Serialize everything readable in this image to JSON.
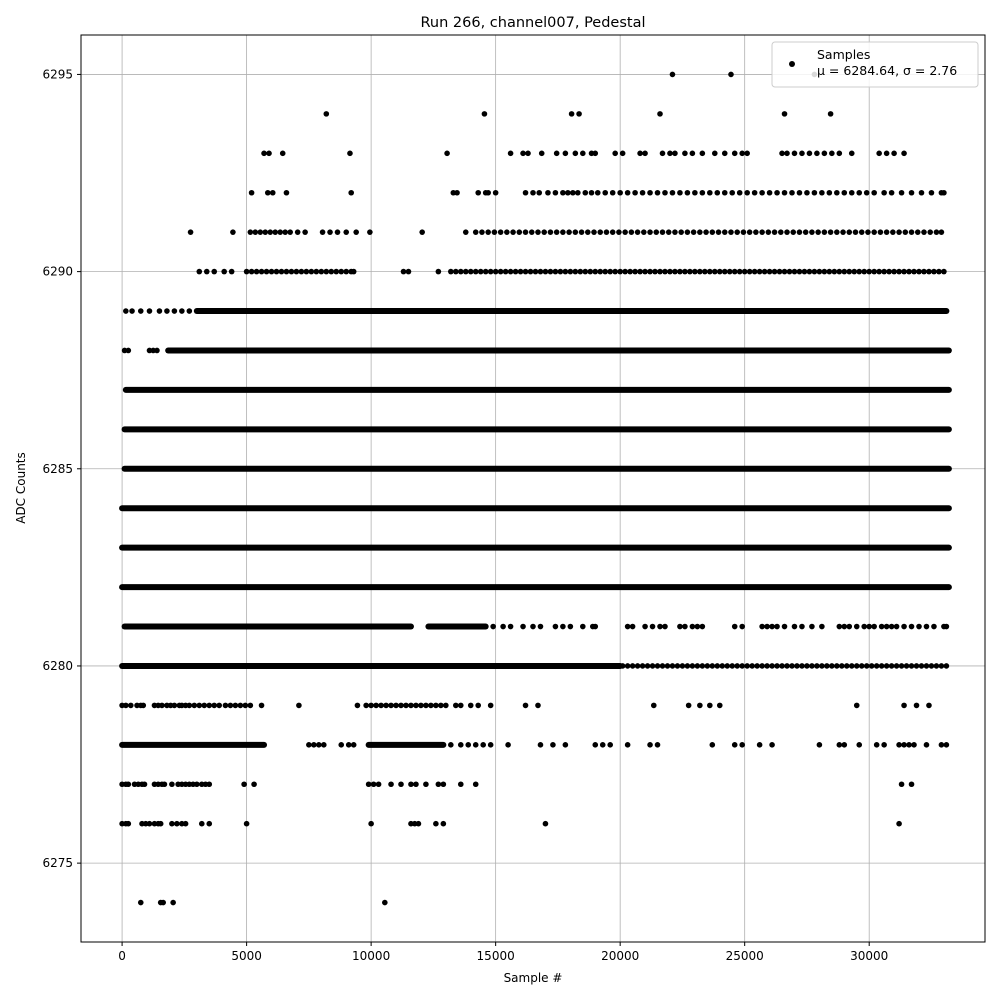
{
  "chart_data": {
    "type": "scatter",
    "title": "Run 266, channel007, Pedestal",
    "xlabel": "Sample #",
    "ylabel": "ADC Counts",
    "xlim": [
      -1650,
      34650
    ],
    "ylim": [
      6273,
      6296
    ],
    "x_ticks": [
      0,
      5000,
      10000,
      15000,
      20000,
      25000,
      30000
    ],
    "y_ticks": [
      6275,
      6280,
      6285,
      6290,
      6295
    ],
    "x_tick_labels": [
      "0",
      "5000",
      "10000",
      "15000",
      "20000",
      "25000",
      "30000"
    ],
    "y_tick_labels": [
      "6275",
      "6280",
      "6285",
      "6290",
      "6295"
    ],
    "grid": true,
    "legend_position": "top-right",
    "series": [
      {
        "name": "Samples",
        "stats_label": "μ = 6284.64, σ = 2.76",
        "color": "#000000",
        "marker": "dot",
        "n_samples": 33200,
        "levels": [
          {
            "y": 6295,
            "x": [
              22100,
              24450,
              27800
            ]
          },
          {
            "y": 6294,
            "x": [
              8200,
              14550,
              18050,
              18350,
              21600,
              26600,
              28450
            ]
          },
          {
            "y": 6293,
            "x": [
              5700,
              5900,
              6450,
              9150,
              13050,
              15600,
              16100,
              16300,
              16850,
              17450,
              17800,
              18200,
              18500,
              18850,
              19000,
              19800,
              20100,
              20800,
              21000,
              21700,
              22000,
              22200,
              22600,
              22900,
              23300,
              23800,
              24200,
              24600,
              24900,
              25100,
              26500,
              26700,
              27000,
              27300,
              27600,
              27900,
              28200,
              28500,
              28800,
              29300,
              30400,
              30700,
              31000,
              31400
            ]
          },
          {
            "y": 6292,
            "x": [
              5200,
              5850,
              6050,
              6600,
              9200,
              13300,
              13450,
              14300,
              14600,
              14700,
              15000,
              16200,
              16500,
              16750,
              17100,
              17400,
              17700,
              17900,
              18100,
              18300,
              18600,
              18850,
              19100,
              19400,
              19700,
              20000,
              20300,
              20600,
              20900,
              21200,
              21500,
              21800,
              22100,
              22400,
              22700,
              23000,
              23300,
              23600,
              23900,
              24200,
              24500,
              24800,
              25100,
              25400,
              25700,
              26000,
              26300,
              26600,
              26900,
              27200,
              27500,
              27800,
              28100,
              28400,
              28700,
              29000,
              29300,
              29600,
              29900,
              30200,
              30600,
              30900,
              31300,
              31700,
              32100,
              32500,
              32900,
              33000
            ]
          },
          {
            "y": 6291,
            "x": [
              2750,
              4450,
              5150,
              5350,
              5550,
              5750,
              5950,
              6150,
              6350,
              6550,
              6750,
              7050,
              7350,
              8050,
              8350,
              8650,
              9000,
              9400,
              9950,
              12050,
              13800,
              14200,
              14450,
              14700,
              14950,
              15200,
              15450,
              15700,
              15950,
              16200,
              16450,
              16700,
              16950,
              17200,
              17450,
              17700,
              17950,
              18200,
              18450,
              18700,
              18950,
              19200,
              19450,
              19700,
              19950,
              20200,
              20450,
              20700,
              20950,
              21200,
              21450,
              21700,
              21950,
              22200,
              22450,
              22700,
              22950,
              23200,
              23450,
              23700,
              23950,
              24200,
              24450,
              24700,
              24950,
              25200,
              25450,
              25700,
              25950,
              26200,
              26450,
              26700,
              26950,
              27200,
              27450,
              27700,
              27950,
              28200,
              28450,
              28700,
              28950,
              29200,
              29450,
              29700,
              29950,
              30200,
              30450,
              30700,
              30950,
              31200,
              31450,
              31700,
              31950,
              32200,
              32450,
              32700,
              32900
            ]
          },
          {
            "y": 6290,
            "x": [
              3100,
              3400,
              3700,
              4100,
              4400,
              5000,
              5200,
              5400,
              5600,
              5800,
              6000,
              6200,
              6400,
              6600,
              6800,
              7000,
              7200,
              7400,
              7600,
              7800,
              8000,
              8200,
              8400,
              8600,
              8800,
              9000,
              9200,
              9300,
              11300,
              11500,
              12700,
              13200,
              13400,
              13600,
              13800,
              14000,
              14200,
              14400,
              14600,
              14800,
              15000,
              15200,
              15400,
              15600,
              15800,
              16000,
              16200,
              16400,
              16600,
              16800,
              17000,
              17200,
              17400,
              17600,
              17800,
              18000,
              18200,
              18400,
              18600,
              18800,
              19000,
              19200,
              19400,
              19600,
              19800,
              20000,
              20200,
              20400,
              20600,
              20800,
              21000,
              21200,
              21400,
              21600,
              21800,
              22000,
              22200,
              22400,
              22600,
              22800,
              23000,
              23200,
              23400,
              23600,
              23800,
              24000,
              24200,
              24400,
              24600,
              24800,
              25000,
              25200,
              25400,
              25600,
              25800,
              26000,
              26200,
              26400,
              26600,
              26800,
              27000,
              27200,
              27400,
              27600,
              27800,
              28000,
              28200,
              28400,
              28600,
              28800,
              29000,
              29200,
              29400,
              29600,
              29800,
              30000,
              30200,
              30400,
              30600,
              30800,
              31000,
              31200,
              31400,
              31600,
              31800,
              32000,
              32200,
              32400,
              32600,
              32800,
              33000
            ]
          },
          {
            "y": 6289,
            "x_ranges": [
              [
                3000,
                33100
              ]
            ],
            "x": [
              150,
              400,
              750,
              1100,
              1500,
              1800,
              2100,
              2400,
              2700,
              9800,
              10300,
              10600,
              10900,
              11300,
              11600,
              11900,
              12300,
              12700,
              13100,
              13400,
              13700
            ]
          },
          {
            "y": 6288,
            "x_ranges": [
              [
                1850,
                33200
              ]
            ],
            "x": [
              100,
              250,
              1100,
              1250,
              1400
            ]
          },
          {
            "y": 6287,
            "x_ranges": [
              [
                150,
                33200
              ]
            ]
          },
          {
            "y": 6286,
            "x_ranges": [
              [
                100,
                33200
              ]
            ]
          },
          {
            "y": 6285,
            "x_ranges": [
              [
                100,
                33200
              ]
            ]
          },
          {
            "y": 6284,
            "x_ranges": [
              [
                0,
                33200
              ]
            ]
          },
          {
            "y": 6283,
            "x_ranges": [
              [
                0,
                33200
              ]
            ]
          },
          {
            "y": 6282,
            "x_ranges": [
              [
                0,
                33200
              ]
            ]
          },
          {
            "y": 6281,
            "x_ranges": [
              [
                100,
                11600
              ],
              [
                12300,
                14600
              ]
            ],
            "x": [
              14900,
              15300,
              15600,
              16100,
              16500,
              16800,
              17400,
              17700,
              18000,
              18500,
              18900,
              19000,
              20300,
              20500,
              21000,
              21300,
              21600,
              21800,
              22400,
              22600,
              22900,
              23100,
              23300,
              24600,
              24900,
              25700,
              25900,
              26100,
              26300,
              26600,
              27000,
              27300,
              27700,
              28100,
              28800,
              29000,
              29200,
              29500,
              29800,
              30000,
              30200,
              30500,
              30700,
              30900,
              31100,
              31400,
              31700,
              32000,
              32300,
              32600,
              33000,
              33100
            ]
          },
          {
            "y": 6280,
            "x_ranges": [
              [
                0,
                20000
              ]
            ],
            "x": [
              20100,
              20300,
              20500,
              20700,
              20900,
              21100,
              21300,
              21500,
              21700,
              21900,
              22100,
              22300,
              22500,
              22700,
              22900,
              23100,
              23300,
              23500,
              23700,
              23900,
              24100,
              24300,
              24500,
              24700,
              24900,
              25100,
              25300,
              25500,
              25700,
              25900,
              26100,
              26300,
              26500,
              26700,
              26900,
              27100,
              27300,
              27500,
              27700,
              27900,
              28100,
              28300,
              28500,
              28700,
              28900,
              29100,
              29300,
              29500,
              29700,
              29900,
              30100,
              30300,
              30500,
              30700,
              30900,
              31100,
              31300,
              31500,
              31700,
              31900,
              32100,
              32300,
              32500,
              32700,
              32900,
              33100
            ]
          },
          {
            "y": 6279,
            "x": [
              0,
              150,
              350,
              600,
              750,
              850,
              1300,
              1450,
              1600,
              1800,
              1950,
              2100,
              2300,
              2400,
              2550,
              2700,
              2900,
              3100,
              3300,
              3500,
              3700,
              3900,
              4150,
              4350,
              4550,
              4750,
              4950,
              5150,
              5600,
              7100,
              9450,
              9800,
              10000,
              10200,
              10400,
              10600,
              10800,
              11000,
              11200,
              11400,
              11600,
              11800,
              12000,
              12200,
              12400,
              12600,
              12800,
              13000,
              13400,
              13600,
              14000,
              14300,
              14800,
              16200,
              16700,
              21350,
              22750,
              23200,
              23600,
              24000,
              29500,
              31400,
              31900,
              32400
            ]
          },
          {
            "y": 6278,
            "x_ranges": [
              [
                0,
                5700
              ],
              [
                9900,
                12900
              ]
            ],
            "x": [
              7500,
              7700,
              7900,
              8100,
              8800,
              9100,
              9300,
              13200,
              13600,
              13900,
              14200,
              14500,
              14800,
              15500,
              16800,
              17300,
              17800,
              19000,
              19300,
              19600,
              20300,
              21200,
              21500,
              23700,
              24600,
              24900,
              25600,
              26100,
              28000,
              28800,
              29000,
              29600,
              30300,
              30600,
              31200,
              31400,
              31600,
              31800,
              32300,
              32900,
              33100
            ]
          },
          {
            "y": 6277,
            "x": [
              0,
              150,
              250,
              500,
              650,
              800,
              900,
              1300,
              1450,
              1600,
              1700,
              2000,
              2250,
              2400,
              2550,
              2700,
              2850,
              3000,
              3200,
              3350,
              3500,
              4900,
              5300,
              9900,
              10100,
              10300,
              10800,
              11200,
              11600,
              11800,
              12200,
              12700,
              12900,
              13600,
              14200,
              31300,
              31700
            ]
          },
          {
            "y": 6276,
            "x": [
              0,
              150,
              250,
              800,
              950,
              1100,
              1300,
              1450,
              1550,
              2000,
              2200,
              2400,
              2550,
              3200,
              3500,
              5000,
              10000,
              11600,
              11750,
              11900,
              12600,
              12900,
              17000,
              31200
            ]
          },
          {
            "y": 6274,
            "x": [
              750,
              1550,
              1650,
              2050,
              10550
            ]
          }
        ]
      }
    ]
  }
}
